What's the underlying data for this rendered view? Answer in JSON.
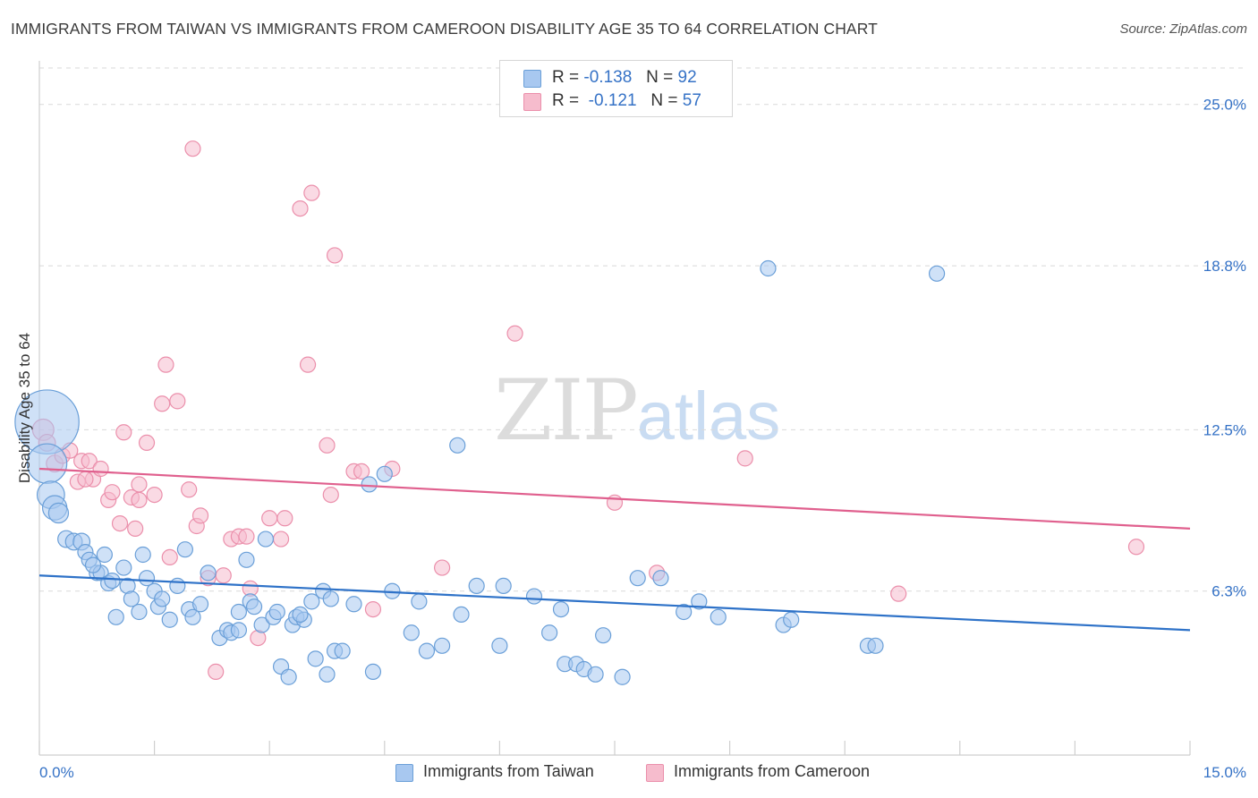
{
  "header": {
    "title": "IMMIGRANTS FROM TAIWAN VS IMMIGRANTS FROM CAMEROON DISABILITY AGE 35 TO 64 CORRELATION CHART",
    "source": "Source: ZipAtlas.com"
  },
  "legend": {
    "taiwan": {
      "r_label": "R =",
      "r_value": "-0.138",
      "n_label": "N =",
      "n_value": "92"
    },
    "cameroon": {
      "r_label": "R =",
      "r_value": "-0.121",
      "n_label": "N =",
      "n_value": "57"
    }
  },
  "watermark": {
    "zip": "ZIP",
    "atlas": "atlas"
  },
  "colors": {
    "taiwan_fill": "#a8c8f0",
    "taiwan_stroke": "#6a9fd8",
    "taiwan_line": "#2e72c8",
    "cameroon_fill": "#f6bccd",
    "cameroon_stroke": "#eb8fab",
    "cameroon_line": "#e0608e",
    "tick_label": "#3572c6",
    "grid": "#d9d9d9"
  },
  "chart_data": {
    "type": "scatter",
    "title": "IMMIGRANTS FROM TAIWAN VS IMMIGRANTS FROM CAMEROON DISABILITY AGE 35 TO 64 CORRELATION CHART",
    "xlabel": "",
    "ylabel": "Disability Age 35 to 64",
    "xlim": [
      0,
      15
    ],
    "ylim": [
      0,
      26.4
    ],
    "x_tick_labels": [
      "0.0%",
      "15.0%"
    ],
    "y_ticks": [
      6.3,
      12.5,
      18.8,
      25.0
    ],
    "y_tick_labels": [
      "6.3%",
      "12.5%",
      "18.8%",
      "25.0%"
    ],
    "grid": true,
    "legend_position": "top-center",
    "series": [
      {
        "name": "Immigrants from Taiwan",
        "trend": {
          "x": [
            0,
            15
          ],
          "y": [
            6.9,
            4.8
          ]
        },
        "points": [
          [
            0.1,
            12.8,
            4.2
          ],
          [
            0.1,
            11.2,
            2.6
          ],
          [
            0.15,
            10.0,
            1.8
          ],
          [
            0.2,
            9.5,
            1.6
          ],
          [
            0.25,
            9.3,
            1.3
          ],
          [
            0.35,
            8.3,
            1.1
          ],
          [
            0.45,
            8.2,
            1.1
          ],
          [
            0.55,
            8.2,
            1.1
          ],
          [
            0.6,
            7.8,
            1.0
          ],
          [
            0.65,
            7.5,
            1.0
          ],
          [
            0.75,
            7.0,
            1.0
          ],
          [
            0.8,
            7.0,
            1.0
          ],
          [
            0.85,
            7.7,
            1.0
          ],
          [
            0.9,
            6.6,
            1.0
          ],
          [
            0.95,
            6.7,
            1.0
          ],
          [
            1.0,
            5.3,
            1.0
          ],
          [
            1.1,
            7.2,
            1.0
          ],
          [
            1.15,
            6.5,
            1.0
          ],
          [
            1.2,
            6.0,
            1.0
          ],
          [
            1.3,
            5.5,
            1.0
          ],
          [
            1.35,
            7.7,
            1.0
          ],
          [
            1.4,
            6.8,
            1.0
          ],
          [
            1.5,
            6.3,
            1.0
          ],
          [
            1.55,
            5.7,
            1.0
          ],
          [
            1.6,
            6.0,
            1.0
          ],
          [
            1.7,
            5.2,
            1.0
          ],
          [
            1.8,
            6.5,
            1.0
          ],
          [
            1.9,
            7.9,
            1.0
          ],
          [
            1.95,
            5.6,
            1.0
          ],
          [
            2.0,
            5.3,
            1.0
          ],
          [
            2.1,
            5.8,
            1.0
          ],
          [
            2.2,
            7.0,
            1.0
          ],
          [
            2.35,
            4.5,
            1.0
          ],
          [
            2.45,
            4.8,
            1.0
          ],
          [
            2.5,
            4.7,
            1.0
          ],
          [
            2.6,
            4.8,
            1.0
          ],
          [
            2.6,
            5.5,
            1.0
          ],
          [
            2.7,
            7.5,
            1.0
          ],
          [
            2.75,
            5.9,
            1.0
          ],
          [
            2.8,
            5.7,
            1.0
          ],
          [
            2.9,
            5.0,
            1.0
          ],
          [
            2.95,
            8.3,
            1.0
          ],
          [
            3.05,
            5.3,
            1.0
          ],
          [
            3.1,
            5.5,
            1.0
          ],
          [
            3.15,
            3.4,
            1.0
          ],
          [
            3.25,
            3.0,
            1.0
          ],
          [
            3.3,
            5.0,
            1.0
          ],
          [
            3.35,
            5.3,
            1.0
          ],
          [
            3.45,
            5.2,
            1.0
          ],
          [
            3.55,
            5.9,
            1.0
          ],
          [
            3.6,
            3.7,
            1.0
          ],
          [
            3.7,
            6.3,
            1.0
          ],
          [
            3.75,
            3.1,
            1.0
          ],
          [
            3.8,
            6.0,
            1.0
          ],
          [
            3.85,
            4.0,
            1.0
          ],
          [
            3.95,
            4.0,
            1.0
          ],
          [
            4.1,
            5.8,
            1.0
          ],
          [
            4.35,
            3.2,
            1.0
          ],
          [
            4.5,
            10.8,
            1.0
          ],
          [
            4.6,
            6.3,
            1.0
          ],
          [
            4.85,
            4.7,
            1.0
          ],
          [
            4.95,
            5.9,
            1.0
          ],
          [
            5.05,
            4.0,
            1.0
          ],
          [
            5.25,
            4.2,
            1.0
          ],
          [
            5.45,
            11.9,
            1.0
          ],
          [
            5.5,
            5.4,
            1.0
          ],
          [
            5.7,
            6.5,
            1.0
          ],
          [
            6.0,
            4.2,
            1.0
          ],
          [
            6.05,
            6.5,
            1.0
          ],
          [
            6.45,
            6.1,
            1.0
          ],
          [
            6.65,
            4.7,
            1.0
          ],
          [
            6.8,
            5.6,
            1.0
          ],
          [
            6.85,
            3.5,
            1.0
          ],
          [
            7.0,
            3.5,
            1.0
          ],
          [
            7.1,
            3.3,
            1.0
          ],
          [
            7.25,
            3.1,
            1.0
          ],
          [
            7.35,
            4.6,
            1.0
          ],
          [
            7.6,
            3.0,
            1.0
          ],
          [
            7.8,
            6.8,
            1.0
          ],
          [
            8.1,
            6.8,
            1.0
          ],
          [
            8.4,
            5.5,
            1.0
          ],
          [
            8.6,
            5.9,
            1.0
          ],
          [
            8.85,
            5.3,
            1.0
          ],
          [
            9.5,
            18.7,
            1.0
          ],
          [
            9.7,
            5.0,
            1.0
          ],
          [
            9.8,
            5.2,
            1.0
          ],
          [
            10.8,
            4.2,
            1.0
          ],
          [
            10.9,
            4.2,
            1.0
          ],
          [
            11.7,
            18.5,
            1.0
          ],
          [
            3.4,
            5.4,
            1.0
          ],
          [
            4.3,
            10.4,
            1.0
          ],
          [
            0.7,
            7.3,
            1.0
          ]
        ]
      },
      {
        "name": "Immigrants from Cameroon",
        "trend": {
          "x": [
            0,
            15
          ],
          "y": [
            11.0,
            8.7
          ]
        },
        "points": [
          [
            0.05,
            12.5,
            1.4
          ],
          [
            0.1,
            12.0,
            1.1
          ],
          [
            0.2,
            11.2,
            1.1
          ],
          [
            0.3,
            11.5,
            1.0
          ],
          [
            0.4,
            11.7,
            1.0
          ],
          [
            0.5,
            10.5,
            1.0
          ],
          [
            0.55,
            11.3,
            1.0
          ],
          [
            0.65,
            11.3,
            1.0
          ],
          [
            0.7,
            10.6,
            1.0
          ],
          [
            0.8,
            11.0,
            1.0
          ],
          [
            0.9,
            9.8,
            1.0
          ],
          [
            0.95,
            10.1,
            1.0
          ],
          [
            1.05,
            8.9,
            1.0
          ],
          [
            1.1,
            12.4,
            1.0
          ],
          [
            1.2,
            9.9,
            1.0
          ],
          [
            1.25,
            8.7,
            1.0
          ],
          [
            1.3,
            10.4,
            1.0
          ],
          [
            1.4,
            12.0,
            1.0
          ],
          [
            1.5,
            10.0,
            1.0
          ],
          [
            1.6,
            13.5,
            1.0
          ],
          [
            1.65,
            15.0,
            1.0
          ],
          [
            1.7,
            7.6,
            1.0
          ],
          [
            1.8,
            13.6,
            1.0
          ],
          [
            1.95,
            10.2,
            1.0
          ],
          [
            2.0,
            23.3,
            1.0
          ],
          [
            2.05,
            8.8,
            1.0
          ],
          [
            2.1,
            9.2,
            1.0
          ],
          [
            2.2,
            6.8,
            1.0
          ],
          [
            2.3,
            3.2,
            1.0
          ],
          [
            2.4,
            6.9,
            1.0
          ],
          [
            2.5,
            8.3,
            1.0
          ],
          [
            2.6,
            8.4,
            1.0
          ],
          [
            2.75,
            6.4,
            1.0
          ],
          [
            2.85,
            4.5,
            1.0
          ],
          [
            3.0,
            9.1,
            1.0
          ],
          [
            3.15,
            8.3,
            1.0
          ],
          [
            3.2,
            9.1,
            1.0
          ],
          [
            3.4,
            21.0,
            1.0
          ],
          [
            3.55,
            21.6,
            1.0
          ],
          [
            3.75,
            11.9,
            1.0
          ],
          [
            3.8,
            10.0,
            1.0
          ],
          [
            3.85,
            19.2,
            1.0
          ],
          [
            4.1,
            10.9,
            1.0
          ],
          [
            4.2,
            10.9,
            1.0
          ],
          [
            4.35,
            5.6,
            1.0
          ],
          [
            5.25,
            7.2,
            1.0
          ],
          [
            6.2,
            16.2,
            1.0
          ],
          [
            7.5,
            9.7,
            1.0
          ],
          [
            8.05,
            7.0,
            1.0
          ],
          [
            9.2,
            11.4,
            1.0
          ],
          [
            11.2,
            6.2,
            1.0
          ],
          [
            14.3,
            8.0,
            1.0
          ],
          [
            3.5,
            15.0,
            1.0
          ],
          [
            4.6,
            11.0,
            1.0
          ],
          [
            1.3,
            9.8,
            1.0
          ],
          [
            0.6,
            10.6,
            1.0
          ],
          [
            2.7,
            8.4,
            1.0
          ]
        ]
      }
    ]
  },
  "bottom_legend": {
    "taiwan_label": "Immigrants from Taiwan",
    "cameroon_label": "Immigrants from Cameroon"
  }
}
